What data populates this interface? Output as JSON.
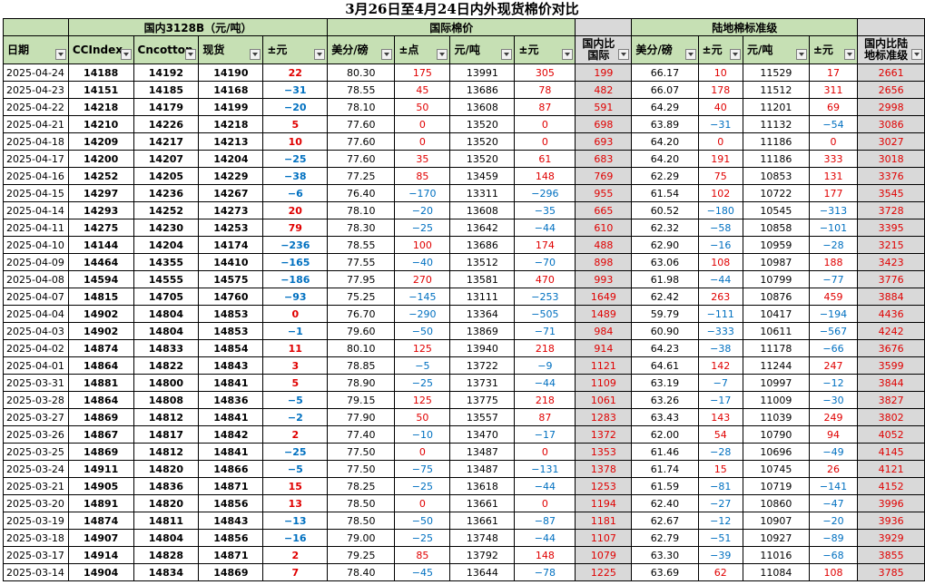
{
  "title": "3月26日至4月24日内外现货棉价对比",
  "group_headers": {
    "date": "",
    "domestic": "国内3128B（元/吨）",
    "intl": "国际棉价",
    "gap1": "",
    "land": "陆地棉标准级",
    "gap2": ""
  },
  "columns": [
    "日期",
    "CCIndex",
    "Cncotton",
    "现货",
    "±元",
    "美分/磅",
    "±点",
    "元/吨",
    "±元",
    "国内比国际",
    "美分/磅",
    "±元",
    "元/吨",
    "±元",
    "国内比陆地标准级"
  ],
  "rows": [
    [
      "2025-04-24",
      "14188",
      "14192",
      "14190",
      "22",
      "80.30",
      "175",
      "13991",
      "305",
      "199",
      "66.17",
      "10",
      "11529",
      "17",
      "2661"
    ],
    [
      "2025-04-23",
      "14151",
      "14185",
      "14168",
      "−31",
      "78.55",
      "45",
      "13686",
      "78",
      "482",
      "66.07",
      "178",
      "11512",
      "311",
      "2656"
    ],
    [
      "2025-04-22",
      "14218",
      "14179",
      "14199",
      "−20",
      "78.10",
      "50",
      "13608",
      "87",
      "591",
      "64.29",
      "40",
      "11201",
      "69",
      "2998"
    ],
    [
      "2025-04-21",
      "14210",
      "14226",
      "14218",
      "5",
      "77.60",
      "0",
      "13520",
      "0",
      "698",
      "63.89",
      "−31",
      "11132",
      "−54",
      "3086"
    ],
    [
      "2025-04-18",
      "14209",
      "14217",
      "14213",
      "10",
      "77.60",
      "0",
      "13520",
      "0",
      "693",
      "64.20",
      "0",
      "11186",
      "0",
      "3027"
    ],
    [
      "2025-04-17",
      "14200",
      "14207",
      "14204",
      "−25",
      "77.60",
      "35",
      "13520",
      "61",
      "683",
      "64.20",
      "191",
      "11186",
      "333",
      "3018"
    ],
    [
      "2025-04-16",
      "14252",
      "14205",
      "14229",
      "−38",
      "77.25",
      "85",
      "13459",
      "148",
      "769",
      "62.29",
      "75",
      "10853",
      "131",
      "3376"
    ],
    [
      "2025-04-15",
      "14297",
      "14236",
      "14267",
      "−6",
      "76.40",
      "−170",
      "13311",
      "−296",
      "955",
      "61.54",
      "102",
      "10722",
      "177",
      "3545"
    ],
    [
      "2025-04-14",
      "14293",
      "14252",
      "14273",
      "20",
      "78.10",
      "−20",
      "13608",
      "−35",
      "665",
      "60.52",
      "−180",
      "10545",
      "−313",
      "3728"
    ],
    [
      "2025-04-11",
      "14275",
      "14230",
      "14253",
      "79",
      "78.30",
      "−25",
      "13642",
      "−44",
      "610",
      "62.32",
      "−58",
      "10858",
      "−101",
      "3395"
    ],
    [
      "2025-04-10",
      "14144",
      "14204",
      "14174",
      "−236",
      "78.55",
      "100",
      "13686",
      "174",
      "488",
      "62.90",
      "−16",
      "10959",
      "−28",
      "3215"
    ],
    [
      "2025-04-09",
      "14464",
      "14355",
      "14410",
      "−165",
      "77.55",
      "−40",
      "13512",
      "−70",
      "898",
      "63.06",
      "108",
      "10987",
      "188",
      "3423"
    ],
    [
      "2025-04-08",
      "14594",
      "14555",
      "14575",
      "−186",
      "77.95",
      "270",
      "13581",
      "470",
      "993",
      "61.98",
      "−44",
      "10799",
      "−77",
      "3776"
    ],
    [
      "2025-04-07",
      "14815",
      "14705",
      "14760",
      "−93",
      "75.25",
      "−145",
      "13111",
      "−253",
      "1649",
      "62.42",
      "263",
      "10876",
      "459",
      "3884"
    ],
    [
      "2025-04-04",
      "14902",
      "14804",
      "14853",
      "0",
      "76.70",
      "−290",
      "13364",
      "−505",
      "1489",
      "59.79",
      "−111",
      "10417",
      "−194",
      "4436"
    ],
    [
      "2025-04-03",
      "14902",
      "14804",
      "14853",
      "−1",
      "79.60",
      "−50",
      "13869",
      "−71",
      "984",
      "60.90",
      "−333",
      "10611",
      "−567",
      "4242"
    ],
    [
      "2025-04-02",
      "14874",
      "14833",
      "14854",
      "11",
      "80.10",
      "125",
      "13940",
      "218",
      "914",
      "64.23",
      "−38",
      "11178",
      "−66",
      "3676"
    ],
    [
      "2025-04-01",
      "14864",
      "14822",
      "14843",
      "3",
      "78.85",
      "−5",
      "13722",
      "−9",
      "1121",
      "64.61",
      "142",
      "11244",
      "247",
      "3599"
    ],
    [
      "2025-03-31",
      "14881",
      "14800",
      "14841",
      "5",
      "78.90",
      "−25",
      "13731",
      "−44",
      "1109",
      "63.19",
      "−7",
      "10997",
      "−12",
      "3844"
    ],
    [
      "2025-03-28",
      "14864",
      "14808",
      "14836",
      "−5",
      "79.15",
      "125",
      "13775",
      "218",
      "1061",
      "63.26",
      "−17",
      "11009",
      "−30",
      "3827"
    ],
    [
      "2025-03-27",
      "14869",
      "14812",
      "14841",
      "−2",
      "77.90",
      "50",
      "13557",
      "87",
      "1283",
      "63.43",
      "143",
      "11039",
      "249",
      "3802"
    ],
    [
      "2025-03-26",
      "14867",
      "14817",
      "14842",
      "2",
      "77.40",
      "−10",
      "13470",
      "−17",
      "1372",
      "62.00",
      "54",
      "10790",
      "94",
      "4052"
    ],
    [
      "2025-03-25",
      "14869",
      "14812",
      "14841",
      "−25",
      "77.50",
      "0",
      "13487",
      "0",
      "1353",
      "61.46",
      "−28",
      "10696",
      "−49",
      "4145"
    ],
    [
      "2025-03-24",
      "14911",
      "14820",
      "14866",
      "−5",
      "77.50",
      "−75",
      "13487",
      "−131",
      "1378",
      "61.74",
      "15",
      "10745",
      "26",
      "4121"
    ],
    [
      "2025-03-21",
      "14905",
      "14836",
      "14871",
      "15",
      "78.25",
      "−25",
      "13618",
      "−44",
      "1253",
      "61.59",
      "−81",
      "10719",
      "−141",
      "4152"
    ],
    [
      "2025-03-20",
      "14891",
      "14820",
      "14856",
      "13",
      "78.50",
      "0",
      "13661",
      "0",
      "1194",
      "62.40",
      "−27",
      "10860",
      "−47",
      "3996"
    ],
    [
      "2025-03-19",
      "14874",
      "14811",
      "14843",
      "−13",
      "78.50",
      "−50",
      "13661",
      "−87",
      "1181",
      "62.67",
      "−12",
      "10907",
      "−20",
      "3936"
    ],
    [
      "2025-03-18",
      "14907",
      "14804",
      "14856",
      "−16",
      "79.00",
      "−25",
      "13748",
      "−44",
      "1107",
      "62.79",
      "−51",
      "10927",
      "−89",
      "3929"
    ],
    [
      "2025-03-17",
      "14914",
      "14828",
      "14871",
      "2",
      "79.25",
      "85",
      "13792",
      "148",
      "1079",
      "63.30",
      "−39",
      "11016",
      "−68",
      "3855"
    ],
    [
      "2025-03-14",
      "14904",
      "14834",
      "14869",
      "7",
      "78.40",
      "−45",
      "13644",
      "−78",
      "1225",
      "63.69",
      "62",
      "11084",
      "108",
      "3785"
    ]
  ],
  "colors": {
    "header_green": "#c6e0b4",
    "gray": "#d9d9d9",
    "positive": "#e00000",
    "negative": "#0070c0"
  }
}
